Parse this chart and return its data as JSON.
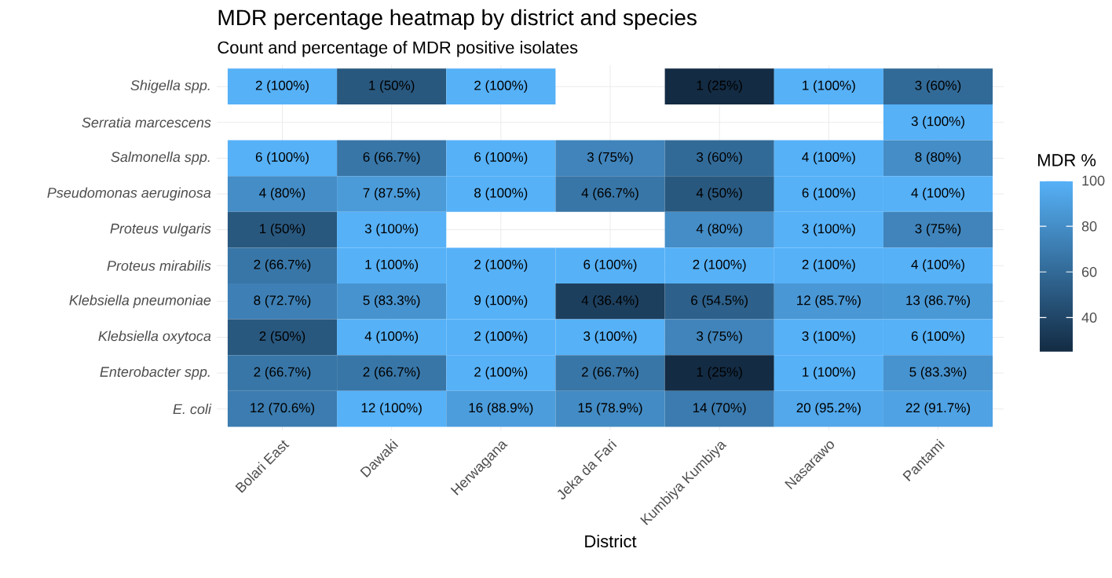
{
  "chart_data": {
    "type": "heatmap",
    "title": "MDR percentage heatmap by district and species",
    "subtitle": "Count and percentage of MDR positive isolates",
    "xlabel": "District",
    "clabel": "MDR %",
    "categories": [
      "Bolari East",
      "Dawaki",
      "Herwagana",
      "Jeka da Fari",
      "Kumbiya Kumbiya",
      "Nasarawo",
      "Pantami"
    ],
    "y_categories": [
      "Shigella spp.",
      "Serratia marcescens",
      "Salmonella spp.",
      "Pseudomonas aeruginosa",
      "Proteus vulgaris",
      "Proteus mirabilis",
      "Klebsiella pneumoniae",
      "Klebsiella oxytoca",
      "Enterobacter spp.",
      "E. coli"
    ],
    "cells": [
      [
        100,
        50,
        100,
        null,
        25,
        100,
        60
      ],
      [
        null,
        null,
        null,
        null,
        null,
        null,
        100
      ],
      [
        100,
        66.7,
        100,
        75,
        60,
        100,
        80
      ],
      [
        80,
        87.5,
        100,
        66.7,
        50,
        100,
        100
      ],
      [
        50,
        100,
        null,
        null,
        80,
        100,
        75
      ],
      [
        66.7,
        100,
        100,
        100,
        100,
        100,
        100
      ],
      [
        72.7,
        83.3,
        100,
        36.4,
        54.5,
        85.7,
        86.7
      ],
      [
        50,
        100,
        100,
        100,
        75,
        100,
        100
      ],
      [
        66.7,
        66.7,
        100,
        66.7,
        25,
        100,
        83.3
      ],
      [
        70.6,
        100,
        88.9,
        78.9,
        70,
        95.2,
        91.7
      ]
    ],
    "cell_labels": [
      [
        "2 (100%)",
        "1 (50%)",
        "2 (100%)",
        null,
        "1 (25%)",
        "1 (100%)",
        "3 (60%)"
      ],
      [
        null,
        null,
        null,
        null,
        null,
        null,
        "3 (100%)"
      ],
      [
        "6 (100%)",
        "6 (66.7%)",
        "6 (100%)",
        "3 (75%)",
        "3 (60%)",
        "4 (100%)",
        "8 (80%)"
      ],
      [
        "4 (80%)",
        "7 (87.5%)",
        "8 (100%)",
        "4 (66.7%)",
        "4 (50%)",
        "6 (100%)",
        "4 (100%)"
      ],
      [
        "1 (50%)",
        "3 (100%)",
        null,
        null,
        "4 (80%)",
        "3 (100%)",
        "3 (75%)"
      ],
      [
        "2 (66.7%)",
        "1 (100%)",
        "2 (100%)",
        "6 (100%)",
        "2 (100%)",
        "2 (100%)",
        "4 (100%)"
      ],
      [
        "8 (72.7%)",
        "5 (83.3%)",
        "9 (100%)",
        "4 (36.4%)",
        "6 (54.5%)",
        "12 (85.7%)",
        "13 (86.7%)"
      ],
      [
        "2 (50%)",
        "4 (100%)",
        "2 (100%)",
        "3 (100%)",
        "3 (75%)",
        "3 (100%)",
        "6 (100%)"
      ],
      [
        "2 (66.7%)",
        "2 (66.7%)",
        "2 (100%)",
        "2 (66.7%)",
        "1 (25%)",
        "1 (100%)",
        "5 (83.3%)"
      ],
      [
        "12 (70.6%)",
        "12 (100%)",
        "16 (88.9%)",
        "15 (78.9%)",
        "14 (70%)",
        "20 (95.2%)",
        "22 (91.7%)"
      ]
    ],
    "clim": [
      25,
      100
    ],
    "cticks": [
      40,
      60,
      80,
      100
    ],
    "grid": true
  }
}
